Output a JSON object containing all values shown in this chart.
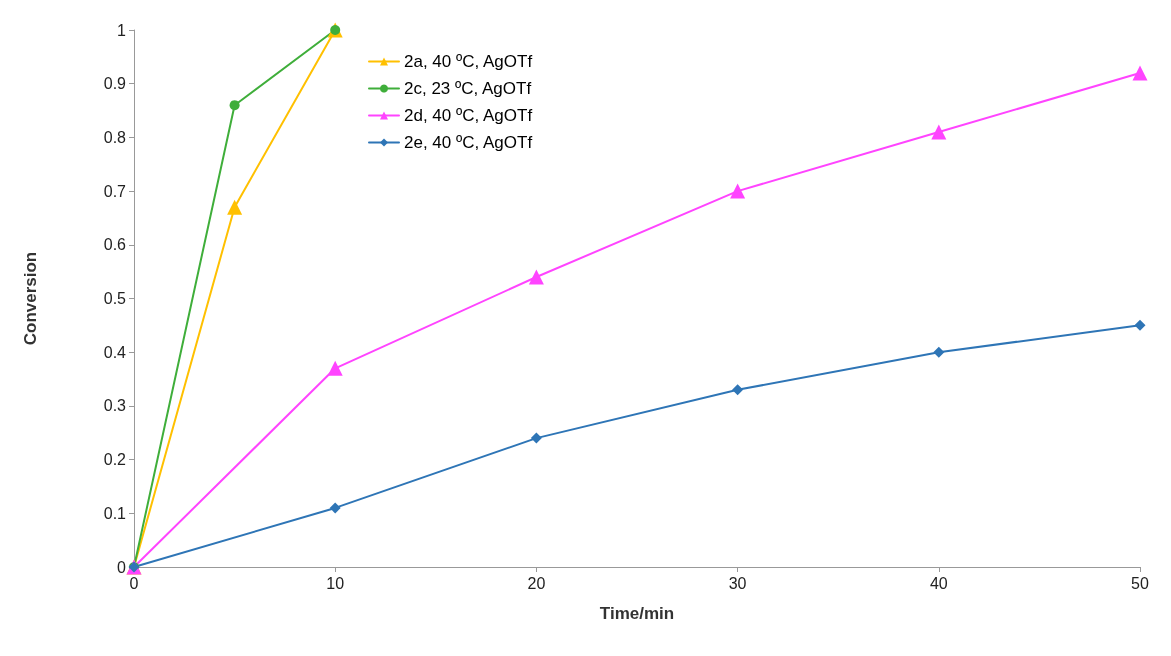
{
  "chart_data": {
    "type": "line",
    "xlabel": "Time/min",
    "ylabel": "Conversion",
    "xlim": [
      0,
      50
    ],
    "xticks": [
      0,
      10,
      20,
      30,
      40,
      50
    ],
    "ylim": [
      0,
      1
    ],
    "yticks": [
      0,
      0.1,
      0.2,
      0.3,
      0.4,
      0.5,
      0.6,
      0.7,
      0.8,
      0.9,
      1
    ],
    "grid": false,
    "legend": "top left",
    "line_style": "solid",
    "series": [
      {
        "name": "2a, 40 ºC, AgOTf",
        "color": "#ffc000",
        "marker": "triangle",
        "x": [
          0,
          5,
          10
        ],
        "values": [
          0,
          0.67,
          1.0
        ]
      },
      {
        "name": "2c, 23 ºC, AgOTf",
        "color": "#3fae3a",
        "marker": "circle",
        "x": [
          0,
          5,
          10
        ],
        "values": [
          0,
          0.86,
          1.0
        ]
      },
      {
        "name": "2d, 40 ºC, AgOTf",
        "color": "#ff44ff",
        "marker": "triangle",
        "x": [
          0,
          10,
          20,
          30,
          40,
          50
        ],
        "values": [
          0,
          0.37,
          0.54,
          0.7,
          0.81,
          0.92
        ]
      },
      {
        "name": "2e, 40 ºC, AgOTf",
        "color": "#2e75b6",
        "marker": "diamond",
        "x": [
          0,
          10,
          20,
          30,
          40,
          50
        ],
        "values": [
          0,
          0.11,
          0.24,
          0.33,
          0.4,
          0.45
        ]
      }
    ]
  }
}
